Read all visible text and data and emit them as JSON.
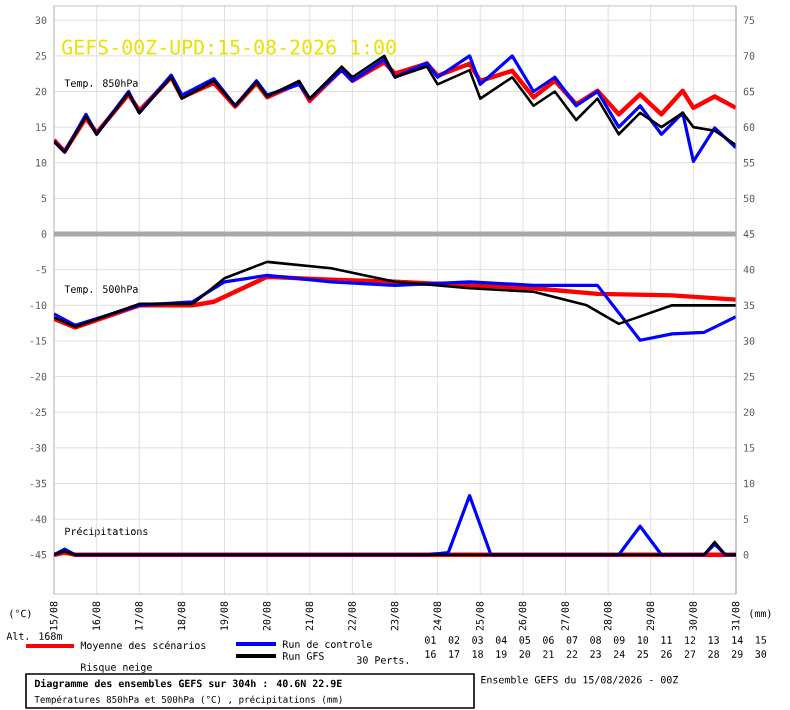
{
  "chart_data": {
    "type": "line",
    "title": "GEFS-00Z-UPD:15-08-2026 1:00",
    "ylabel": "(°C)",
    "y2label": "(mm)",
    "xlim": [
      "2026-08-15",
      "2026-08-31"
    ],
    "ylim": [
      -50.5,
      32
    ],
    "y2lim": [
      -5.5,
      77
    ],
    "xticks": [
      {
        "value": "2026-08-15",
        "label": "15/08"
      },
      {
        "value": "2026-08-16",
        "label": "16/08"
      },
      {
        "value": "2026-08-17",
        "label": "17/08"
      },
      {
        "value": "2026-08-18",
        "label": "18/08"
      },
      {
        "value": "2026-08-19",
        "label": "19/08"
      },
      {
        "value": "2026-08-20",
        "label": "20/08"
      },
      {
        "value": "2026-08-21",
        "label": "21/08"
      },
      {
        "value": "2026-08-22",
        "label": "22/08"
      },
      {
        "value": "2026-08-23",
        "label": "23/08"
      },
      {
        "value": "2026-08-24",
        "label": "24/08"
      },
      {
        "value": "2026-08-25",
        "label": "25/08"
      },
      {
        "value": "2026-08-26",
        "label": "26/08"
      },
      {
        "value": "2026-08-27",
        "label": "27/08"
      },
      {
        "value": "2026-08-28",
        "label": "28/08"
      },
      {
        "value": "2026-08-29",
        "label": "29/08"
      },
      {
        "value": "2026-08-30",
        "label": "30/08"
      },
      {
        "value": "2026-08-31",
        "label": "31/08"
      }
    ],
    "yticks": [
      30,
      25,
      20,
      15,
      10,
      5,
      0,
      -5,
      -10,
      -15,
      -20,
      -25,
      -30,
      -35,
      -40,
      -45
    ],
    "y2ticks": [
      75,
      70,
      65,
      60,
      55,
      50,
      45,
      40,
      35,
      30,
      25,
      20,
      15,
      10,
      5,
      0
    ],
    "grid": true,
    "legend": "bottom",
    "ref_lines": [
      {
        "axis": "y",
        "value": 0,
        "color": "#a8a8a8"
      }
    ],
    "x": [
      "2026-08-15T00:00",
      "2026-08-15T06:00",
      "2026-08-15T18:00",
      "2026-08-16T00:00",
      "2026-08-16T18:00",
      "2026-08-17T00:00",
      "2026-08-17T18:00",
      "2026-08-18T00:00",
      "2026-08-18T18:00",
      "2026-08-19T06:00",
      "2026-08-19T18:00",
      "2026-08-20T00:00",
      "2026-08-20T18:00",
      "2026-08-21T00:00",
      "2026-08-21T18:00",
      "2026-08-22T00:00",
      "2026-08-22T18:00",
      "2026-08-23T00:00",
      "2026-08-23T18:00",
      "2026-08-24T00:00",
      "2026-08-24T18:00",
      "2026-08-25T00:00",
      "2026-08-25T18:00",
      "2026-08-26T06:00",
      "2026-08-26T18:00",
      "2026-08-27T06:00",
      "2026-08-27T18:00",
      "2026-08-28T06:00",
      "2026-08-28T18:00",
      "2026-08-29T06:00",
      "2026-08-29T18:00",
      "2026-08-30T00:00",
      "2026-08-30T12:00",
      "2026-08-31T00:00"
    ],
    "series": [
      {
        "name": "Moyenne des scénarios",
        "color": "#ff0000",
        "values": [
          13.2,
          11.6,
          16.3,
          14.2,
          19.6,
          17.3,
          22,
          19.2,
          21.2,
          17.9,
          21.2,
          19.2,
          21.2,
          18.7,
          23.1,
          21.5,
          24.1,
          22.5,
          23.9,
          22.2,
          23.9,
          21.5,
          22.9,
          19.2,
          21.5,
          18.2,
          20.1,
          16.8,
          19.6,
          16.8,
          20.1,
          17.7,
          19.3,
          17.7
        ]
      },
      {
        "name": "Run de controle",
        "color": "#0000ff",
        "values": [
          13,
          11.5,
          16.8,
          14,
          20,
          17,
          22.3,
          19.5,
          21.8,
          18,
          21.5,
          19.5,
          21,
          19,
          23,
          21.5,
          24.5,
          22,
          24,
          22,
          25,
          21,
          25,
          20,
          22,
          18,
          20,
          15,
          18,
          14,
          17,
          10.2,
          14.9,
          12.1
        ]
      },
      {
        "name": "Run GFS",
        "color": "#000000",
        "values": [
          13,
          11.5,
          16.5,
          14,
          19.8,
          17,
          22,
          19,
          21.5,
          18,
          21.3,
          19.3,
          21.5,
          19,
          23.5,
          22,
          25,
          22,
          23.5,
          21,
          23,
          19,
          22,
          18,
          20,
          16,
          19,
          14,
          17,
          15,
          17,
          15,
          14.5,
          12.5
        ]
      },
      {
        "color": "#ff0000",
        "x": [
          "2026-08-15T00:00",
          "2026-08-15T12:00",
          "2026-08-17T00:00",
          "2026-08-18T06:00",
          "2026-08-18T18:00",
          "2026-08-20T00:00",
          "2026-08-21T12:00",
          "2026-08-23T00:00",
          "2026-08-24T18:00",
          "2026-08-26T06:00",
          "2026-08-27T18:00",
          "2026-08-29T12:00",
          "2026-08-31T00:00"
        ],
        "values": [
          -11.9,
          -13.1,
          -10,
          -10,
          -9.5,
          -6,
          -6.4,
          -6.7,
          -7.2,
          -7.6,
          -8.4,
          -8.6,
          -9.2
        ]
      },
      {
        "color": "#0000ff",
        "x": [
          "2026-08-15T00:00",
          "2026-08-15T12:00",
          "2026-08-17T00:00",
          "2026-08-18T06:00",
          "2026-08-19T00:00",
          "2026-08-20T00:00",
          "2026-08-21T12:00",
          "2026-08-23T00:00",
          "2026-08-24T18:00",
          "2026-08-26T06:00",
          "2026-08-27T18:00",
          "2026-08-28T18:00",
          "2026-08-29T12:00",
          "2026-08-30T06:00",
          "2026-08-31T00:00"
        ],
        "values": [
          -11.2,
          -12.8,
          -10,
          -9.5,
          -6.7,
          -5.8,
          -6.7,
          -7.2,
          -6.7,
          -7.2,
          -7.2,
          -14.9,
          -14,
          -13.8,
          -11.6
        ]
      },
      {
        "color": "#000000",
        "x": [
          "2026-08-15T00:00",
          "2026-08-15T12:00",
          "2026-08-17T00:00",
          "2026-08-18T06:00",
          "2026-08-19T00:00",
          "2026-08-20T00:00",
          "2026-08-21T12:00",
          "2026-08-23T00:00",
          "2026-08-24T18:00",
          "2026-08-26T06:00",
          "2026-08-27T12:00",
          "2026-08-28T06:00",
          "2026-08-29T12:00",
          "2026-08-31T00:00"
        ],
        "values": [
          -11.7,
          -13,
          -9.8,
          -9.8,
          -6.2,
          -3.9,
          -4.8,
          -6.7,
          -7.6,
          -8.1,
          -10,
          -12.6,
          -10,
          -10
        ]
      },
      {
        "color": "#ff0000",
        "axis": "y2",
        "x": [
          "2026-08-15T00:00",
          "2026-08-15T06:00",
          "2026-08-15T12:00",
          "2026-08-31T00:00"
        ],
        "values": [
          0,
          0.3,
          0,
          0
        ]
      },
      {
        "color": "#0000ff",
        "axis": "y2",
        "x": [
          "2026-08-15T00:00",
          "2026-08-15T06:00",
          "2026-08-15T12:00",
          "2026-08-23T18:00",
          "2026-08-24T06:00",
          "2026-08-24T18:00",
          "2026-08-25T06:00",
          "2026-08-28T06:00",
          "2026-08-28T18:00",
          "2026-08-29T06:00",
          "2026-08-30T06:00",
          "2026-08-30T12:00",
          "2026-08-30T18:00",
          "2026-08-31T00:00"
        ],
        "values": [
          0,
          0.8,
          0,
          0,
          0.3,
          8.3,
          0,
          0,
          4,
          0,
          0,
          1.5,
          0,
          0
        ]
      },
      {
        "color": "#000000",
        "axis": "y2",
        "x": [
          "2026-08-15T00:00",
          "2026-08-15T06:00",
          "2026-08-15T12:00",
          "2026-08-30T06:00",
          "2026-08-30T12:00",
          "2026-08-30T18:00",
          "2026-08-31T00:00"
        ],
        "values": [
          0,
          0.5,
          0,
          0,
          1.8,
          0,
          0
        ]
      }
    ],
    "annotations": [
      "Temp. 850hPa",
      "Temp. 500hPa",
      "Précipitations",
      "Alt. 168m",
      "Risque neige",
      "30 Perts.",
      "01",
      "02",
      "03",
      "04",
      "05",
      "06",
      "07",
      "08",
      "09",
      "10",
      "11",
      "12",
      "13",
      "14",
      "15",
      "16",
      "17",
      "18",
      "19",
      "20",
      "21",
      "22",
      "23",
      "24",
      "25",
      "26",
      "27",
      "28",
      "29",
      "30",
      "Diagramme des ensembles GEFS sur 304h : 40.6N 22.9E",
      "Températures 850hPa et 500hPa (°C) , précipitations (mm)",
      "Ensemble GEFS du 15/08/2026 - 00Z"
    ]
  }
}
